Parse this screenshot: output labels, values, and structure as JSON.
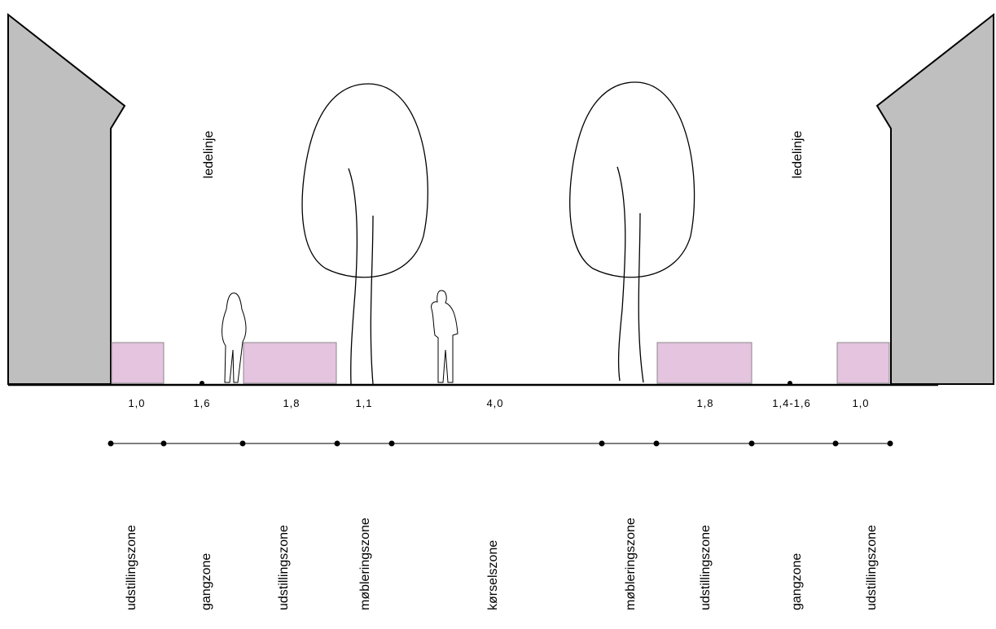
{
  "guide_labels": [
    "ledelinje",
    "ledelinje"
  ],
  "dimensions": [
    "1,0",
    "1,6",
    "1,8",
    "1,1",
    "4,0",
    "1,8",
    "1,4-1,6",
    "1,0"
  ],
  "zones": [
    "udstillingszone",
    "gangzone",
    "udstillingszone",
    "møbleringszone",
    "kørselszone",
    "møbleringszone",
    "udstillingszone",
    "gangzone",
    "udstillingszone"
  ]
}
